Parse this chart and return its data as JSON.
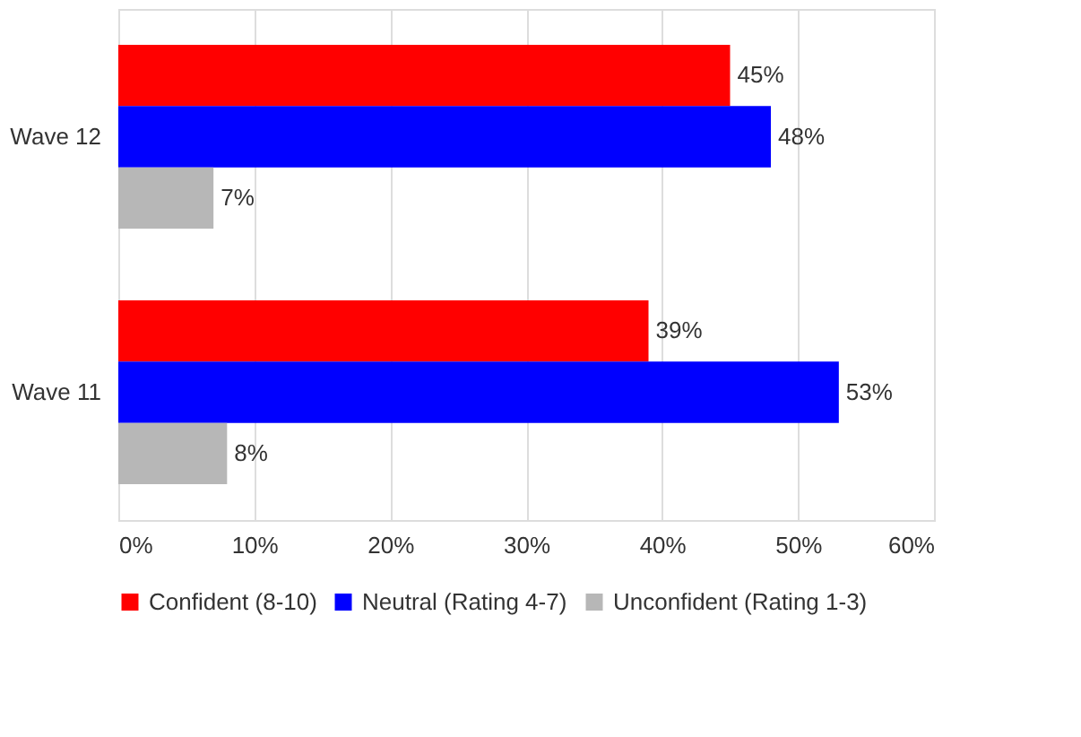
{
  "chart_data": {
    "type": "bar",
    "orientation": "horizontal",
    "categories": [
      "Wave 12",
      "Wave 11"
    ],
    "series": [
      {
        "name": "Confident (8-10)",
        "color": "#ff0000",
        "values": [
          45,
          39
        ],
        "value_labels": [
          "45%",
          "39%"
        ]
      },
      {
        "name": "Neutral (Rating 4-7)",
        "color": "#0000ff",
        "values": [
          48,
          53
        ],
        "value_labels": [
          "48%",
          "53%"
        ]
      },
      {
        "name": "Unconfident (Rating 1-3)",
        "color": "#b7b7b7",
        "values": [
          7,
          8
        ],
        "value_labels": [
          "7%",
          "8%"
        ]
      }
    ],
    "xlim": [
      0,
      60
    ],
    "xticks": [
      {
        "value": 0,
        "label": "0%"
      },
      {
        "value": 10,
        "label": "10%"
      },
      {
        "value": 20,
        "label": "20%"
      },
      {
        "value": 30,
        "label": "30%"
      },
      {
        "value": 40,
        "label": "40%"
      },
      {
        "value": 50,
        "label": "50%"
      },
      {
        "value": 60,
        "label": "60%"
      }
    ],
    "grid": "x",
    "legend": "bottom"
  }
}
